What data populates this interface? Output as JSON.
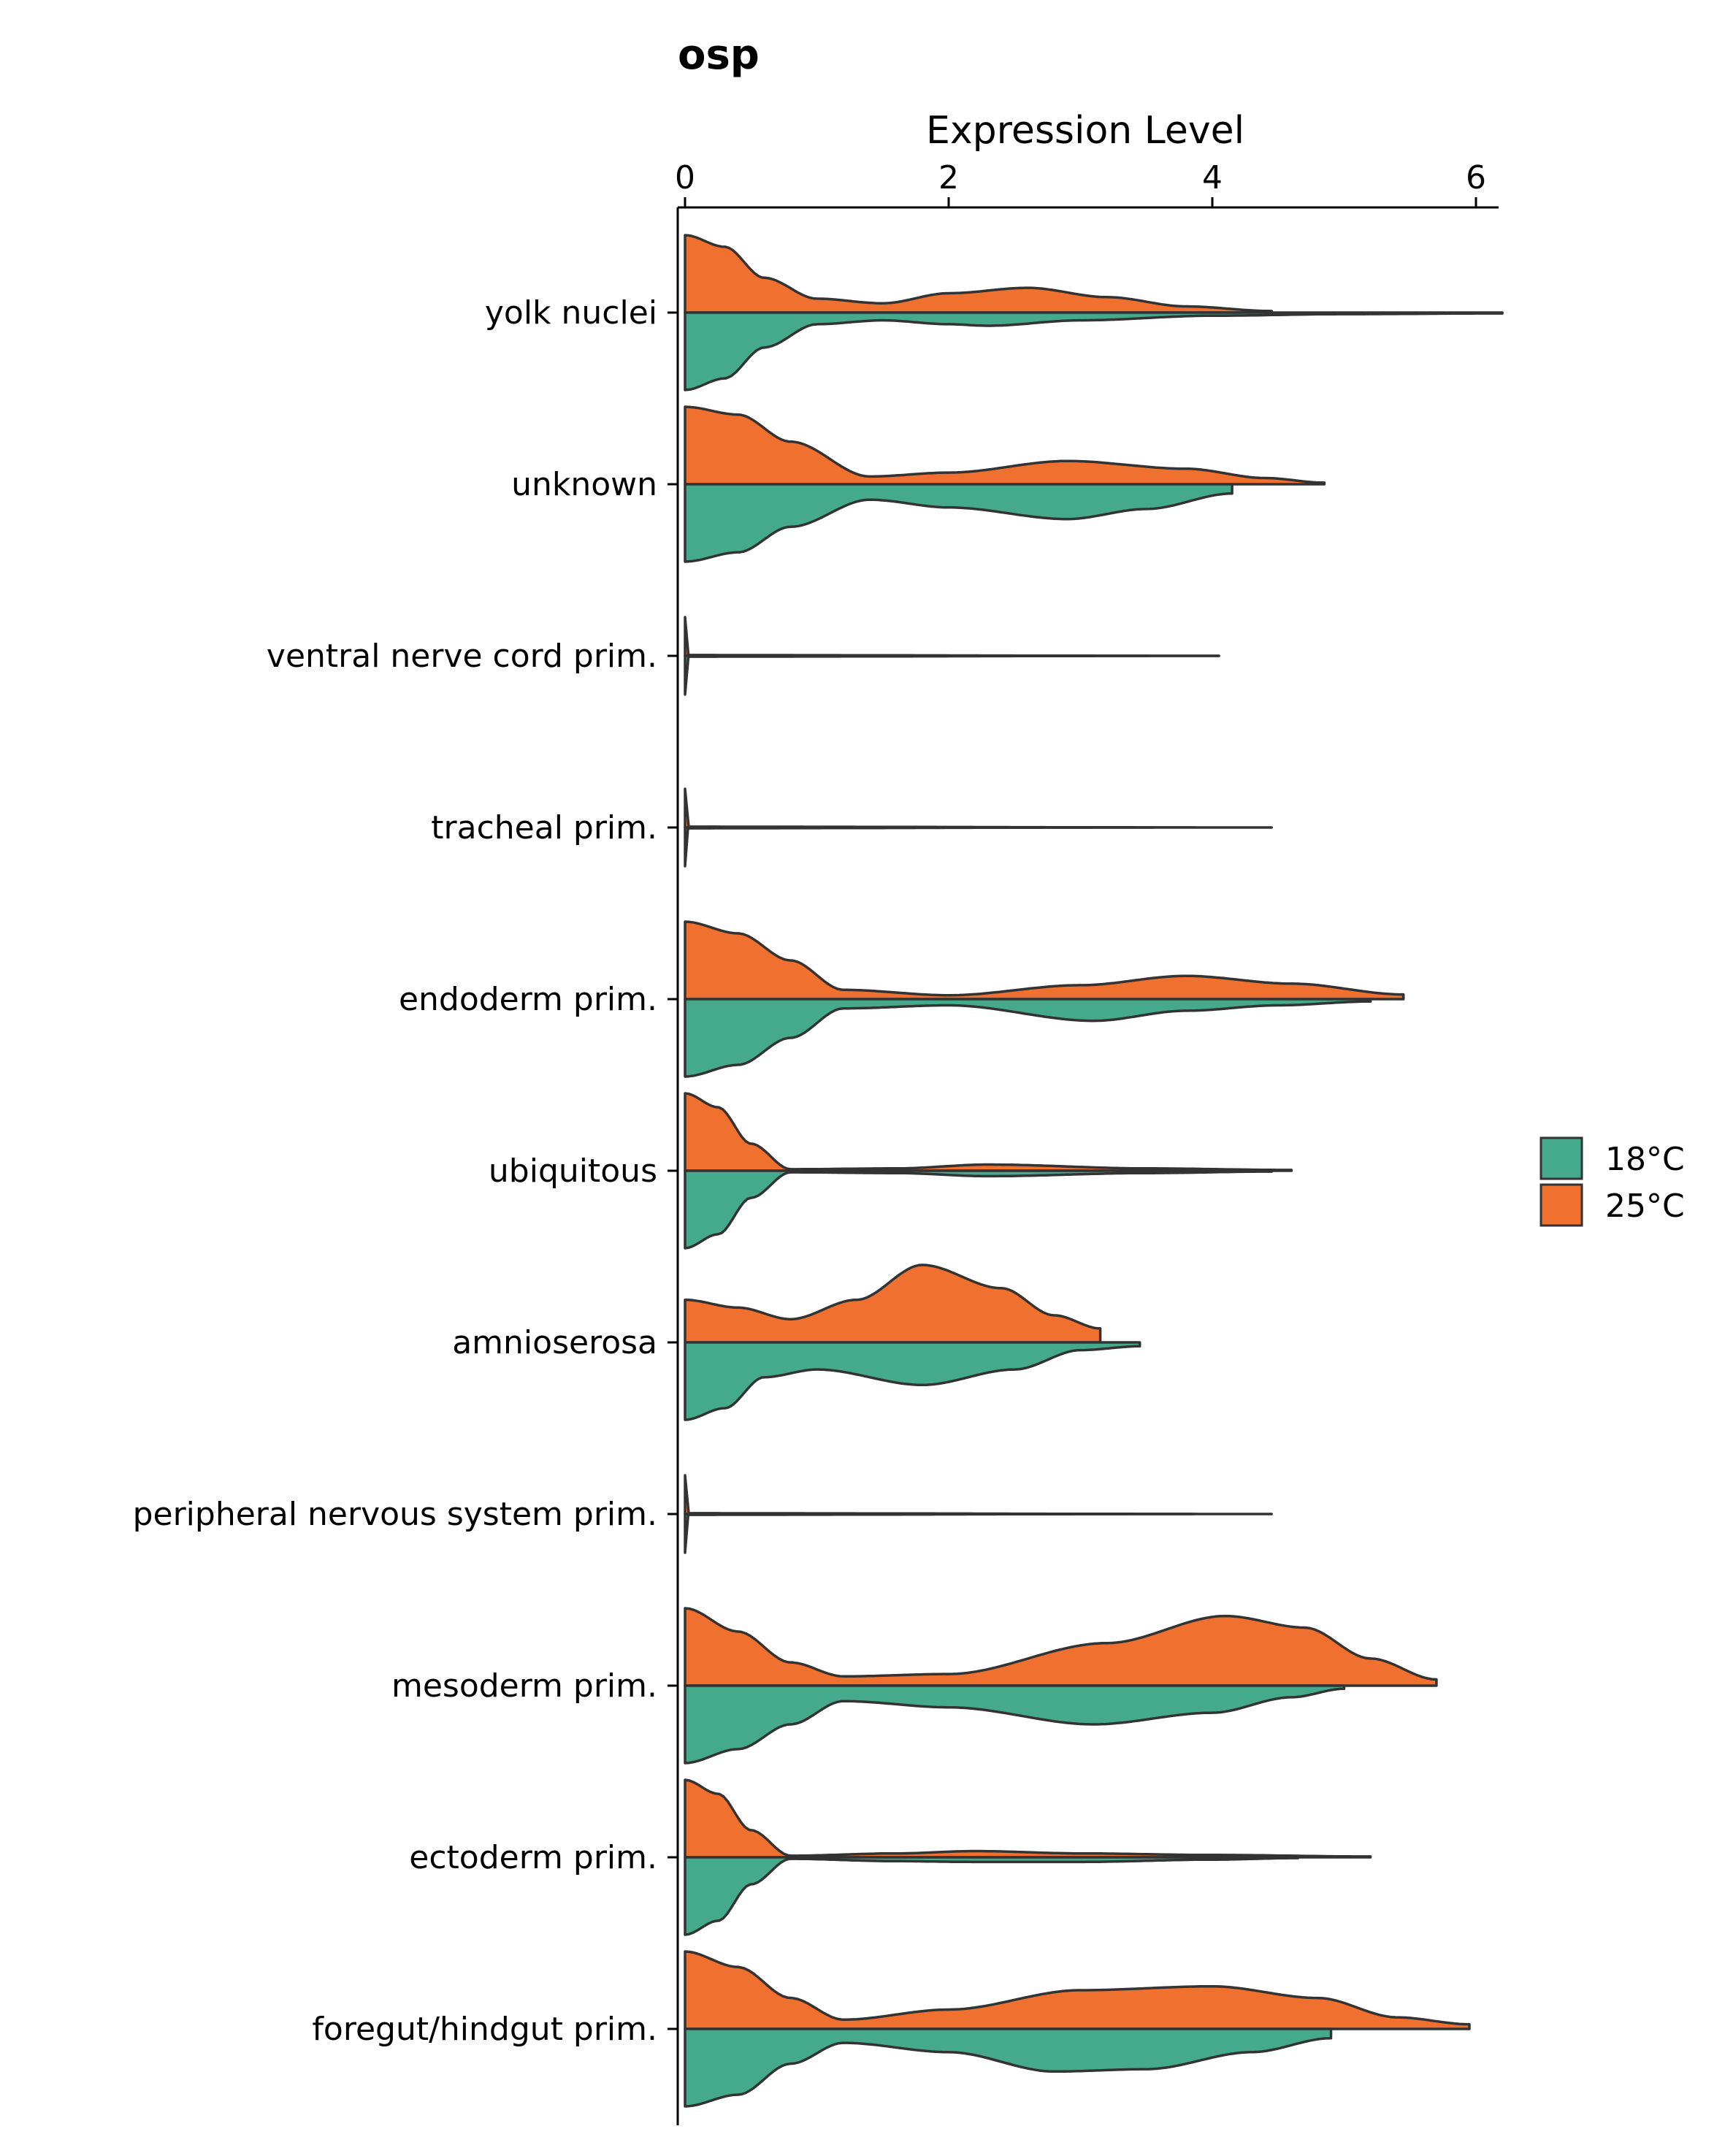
{
  "chart_data": {
    "type": "violin",
    "title": "osp",
    "xlabel": "Expression Level",
    "ylabel": "",
    "orientation": "horizontal",
    "xlim": [
      0,
      6.2
    ],
    "xticks": [
      0,
      2,
      4,
      6
    ],
    "grid": false,
    "legend_position": "right",
    "colors": {
      "18°C": "#44aa8b",
      "25°C": "#f07030"
    },
    "series_names": [
      "18°C",
      "25°C"
    ],
    "categories": [
      "yolk nuclei",
      "unknown",
      "ventral nerve cord prim.",
      "tracheal prim.",
      "endoderm prim.",
      "ubiquitous",
      "amnioserosa",
      "peripheral nervous system prim.",
      "mesoderm prim.",
      "ectoderm prim.",
      "foregut/hindgut prim."
    ],
    "violins": [
      {
        "category": "yolk nuclei",
        "series": "25°C",
        "max": 4.45,
        "density": [
          [
            0,
            1.0
          ],
          [
            0.3,
            0.85
          ],
          [
            0.6,
            0.45
          ],
          [
            1.0,
            0.18
          ],
          [
            1.5,
            0.12
          ],
          [
            2.0,
            0.25
          ],
          [
            2.6,
            0.32
          ],
          [
            3.2,
            0.2
          ],
          [
            3.8,
            0.08
          ],
          [
            4.45,
            0.02
          ]
        ]
      },
      {
        "category": "yolk nuclei",
        "series": "18°C",
        "max": 6.2,
        "density": [
          [
            0,
            1.0
          ],
          [
            0.3,
            0.85
          ],
          [
            0.6,
            0.45
          ],
          [
            1.0,
            0.15
          ],
          [
            1.5,
            0.1
          ],
          [
            2.0,
            0.15
          ],
          [
            2.3,
            0.17
          ],
          [
            3.0,
            0.1
          ],
          [
            4.0,
            0.04
          ],
          [
            5.0,
            0.02
          ],
          [
            6.2,
            0.01
          ]
        ]
      },
      {
        "category": "unknown",
        "series": "25°C",
        "max": 4.85,
        "density": [
          [
            0,
            1.0
          ],
          [
            0.4,
            0.9
          ],
          [
            0.8,
            0.55
          ],
          [
            1.4,
            0.1
          ],
          [
            2.0,
            0.15
          ],
          [
            2.9,
            0.3
          ],
          [
            3.8,
            0.2
          ],
          [
            4.4,
            0.08
          ],
          [
            4.85,
            0.02
          ]
        ]
      },
      {
        "category": "unknown",
        "series": "18°C",
        "max": 4.15,
        "density": [
          [
            0,
            1.0
          ],
          [
            0.4,
            0.88
          ],
          [
            0.8,
            0.55
          ],
          [
            1.4,
            0.2
          ],
          [
            2.0,
            0.3
          ],
          [
            2.9,
            0.45
          ],
          [
            3.5,
            0.32
          ],
          [
            4.15,
            0.12
          ]
        ]
      },
      {
        "category": "ventral nerve cord prim.",
        "series": "25°C",
        "max": 4.05,
        "density": [
          [
            0,
            0.5
          ],
          [
            0.02,
            0.01
          ],
          [
            4.05,
            0.0
          ]
        ]
      },
      {
        "category": "ventral nerve cord prim.",
        "series": "18°C",
        "max": 4.05,
        "density": [
          [
            0,
            0.5
          ],
          [
            0.02,
            0.01
          ],
          [
            4.05,
            0.0
          ]
        ]
      },
      {
        "category": "tracheal prim.",
        "series": "25°C",
        "max": 4.45,
        "density": [
          [
            0,
            0.5
          ],
          [
            0.02,
            0.01
          ],
          [
            4.45,
            0.0
          ]
        ]
      },
      {
        "category": "tracheal prim.",
        "series": "18°C",
        "max": 3.55,
        "density": [
          [
            0,
            0.5
          ],
          [
            0.02,
            0.01
          ],
          [
            3.55,
            0.0
          ]
        ]
      },
      {
        "category": "endoderm prim.",
        "series": "25°C",
        "max": 5.45,
        "density": [
          [
            0,
            1.0
          ],
          [
            0.4,
            0.85
          ],
          [
            0.8,
            0.5
          ],
          [
            1.2,
            0.12
          ],
          [
            2.0,
            0.05
          ],
          [
            3.0,
            0.18
          ],
          [
            3.8,
            0.3
          ],
          [
            4.6,
            0.2
          ],
          [
            5.45,
            0.06
          ]
        ]
      },
      {
        "category": "endoderm prim.",
        "series": "18°C",
        "max": 5.2,
        "density": [
          [
            0,
            1.0
          ],
          [
            0.4,
            0.85
          ],
          [
            0.8,
            0.5
          ],
          [
            1.2,
            0.12
          ],
          [
            2.0,
            0.08
          ],
          [
            3.1,
            0.28
          ],
          [
            3.8,
            0.15
          ],
          [
            4.5,
            0.08
          ],
          [
            5.2,
            0.03
          ]
        ]
      },
      {
        "category": "ubiquitous",
        "series": "25°C",
        "max": 4.6,
        "density": [
          [
            0,
            1.0
          ],
          [
            0.25,
            0.82
          ],
          [
            0.5,
            0.35
          ],
          [
            0.8,
            0.02
          ],
          [
            1.6,
            0.03
          ],
          [
            2.3,
            0.08
          ],
          [
            3.5,
            0.03
          ],
          [
            4.6,
            0.01
          ]
        ]
      },
      {
        "category": "ubiquitous",
        "series": "18°C",
        "max": 4.45,
        "density": [
          [
            0,
            1.0
          ],
          [
            0.25,
            0.82
          ],
          [
            0.5,
            0.35
          ],
          [
            0.8,
            0.02
          ],
          [
            1.6,
            0.03
          ],
          [
            2.3,
            0.07
          ],
          [
            3.5,
            0.03
          ],
          [
            4.45,
            0.01
          ]
        ]
      },
      {
        "category": "amnioserosa",
        "series": "25°C",
        "max": 3.15,
        "density": [
          [
            0,
            0.55
          ],
          [
            0.4,
            0.45
          ],
          [
            0.8,
            0.3
          ],
          [
            1.3,
            0.55
          ],
          [
            1.8,
            1.0
          ],
          [
            2.4,
            0.7
          ],
          [
            2.8,
            0.35
          ],
          [
            3.15,
            0.18
          ]
        ]
      },
      {
        "category": "amnioserosa",
        "series": "18°C",
        "max": 3.45,
        "density": [
          [
            0,
            1.0
          ],
          [
            0.3,
            0.85
          ],
          [
            0.6,
            0.45
          ],
          [
            1.0,
            0.35
          ],
          [
            1.8,
            0.55
          ],
          [
            2.5,
            0.35
          ],
          [
            3.0,
            0.1
          ],
          [
            3.45,
            0.05
          ]
        ]
      },
      {
        "category": "peripheral nervous system prim.",
        "series": "25°C",
        "max": 4.45,
        "density": [
          [
            0,
            0.5
          ],
          [
            0.02,
            0.01
          ],
          [
            4.45,
            0.0
          ]
        ]
      },
      {
        "category": "peripheral nervous system prim.",
        "series": "18°C",
        "max": 3.85,
        "density": [
          [
            0,
            0.5
          ],
          [
            0.02,
            0.01
          ],
          [
            3.85,
            0.0
          ]
        ]
      },
      {
        "category": "mesoderm prim.",
        "series": "25°C",
        "max": 5.7,
        "density": [
          [
            0,
            1.0
          ],
          [
            0.4,
            0.7
          ],
          [
            0.8,
            0.3
          ],
          [
            1.2,
            0.12
          ],
          [
            2.0,
            0.15
          ],
          [
            3.2,
            0.55
          ],
          [
            4.1,
            0.9
          ],
          [
            4.7,
            0.75
          ],
          [
            5.2,
            0.35
          ],
          [
            5.7,
            0.08
          ]
        ]
      },
      {
        "category": "mesoderm prim.",
        "series": "18°C",
        "max": 5.0,
        "density": [
          [
            0,
            1.0
          ],
          [
            0.4,
            0.82
          ],
          [
            0.8,
            0.5
          ],
          [
            1.2,
            0.2
          ],
          [
            2.0,
            0.28
          ],
          [
            3.1,
            0.5
          ],
          [
            4.0,
            0.35
          ],
          [
            4.6,
            0.15
          ],
          [
            5.0,
            0.04
          ]
        ]
      },
      {
        "category": "ectoderm prim.",
        "series": "25°C",
        "max": 5.2,
        "density": [
          [
            0,
            1.0
          ],
          [
            0.25,
            0.82
          ],
          [
            0.5,
            0.35
          ],
          [
            0.8,
            0.02
          ],
          [
            1.6,
            0.05
          ],
          [
            2.2,
            0.08
          ],
          [
            3.0,
            0.05
          ],
          [
            4.0,
            0.03
          ],
          [
            5.2,
            0.01
          ]
        ]
      },
      {
        "category": "ectoderm prim.",
        "series": "18°C",
        "max": 4.65,
        "density": [
          [
            0,
            1.0
          ],
          [
            0.25,
            0.82
          ],
          [
            0.5,
            0.35
          ],
          [
            0.8,
            0.02
          ],
          [
            1.6,
            0.05
          ],
          [
            2.2,
            0.06
          ],
          [
            3.0,
            0.06
          ],
          [
            4.0,
            0.03
          ],
          [
            4.65,
            0.01
          ]
        ]
      },
      {
        "category": "foregut/hindgut prim.",
        "series": "25°C",
        "max": 5.95,
        "density": [
          [
            0,
            1.0
          ],
          [
            0.4,
            0.8
          ],
          [
            0.8,
            0.4
          ],
          [
            1.2,
            0.12
          ],
          [
            2.0,
            0.25
          ],
          [
            3.0,
            0.5
          ],
          [
            4.0,
            0.55
          ],
          [
            4.8,
            0.4
          ],
          [
            5.4,
            0.15
          ],
          [
            5.95,
            0.06
          ]
        ]
      },
      {
        "category": "foregut/hindgut prim.",
        "series": "18°C",
        "max": 4.9,
        "density": [
          [
            0,
            1.0
          ],
          [
            0.4,
            0.85
          ],
          [
            0.8,
            0.45
          ],
          [
            1.2,
            0.18
          ],
          [
            2.0,
            0.3
          ],
          [
            2.8,
            0.55
          ],
          [
            3.5,
            0.52
          ],
          [
            4.3,
            0.3
          ],
          [
            4.9,
            0.12
          ]
        ]
      }
    ]
  }
}
